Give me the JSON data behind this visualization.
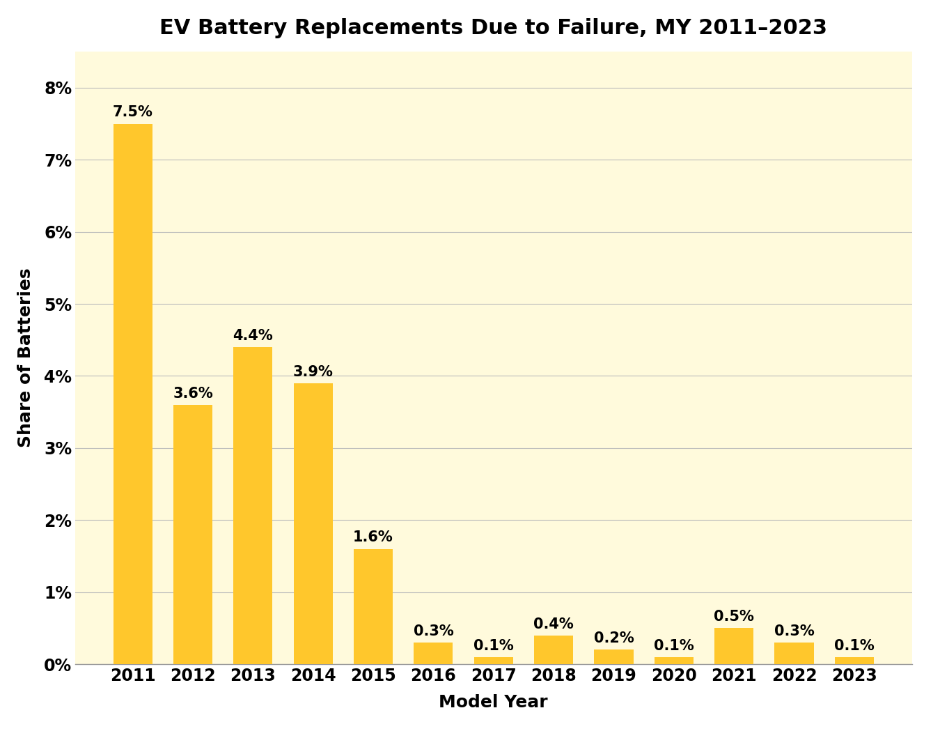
{
  "title": "EV Battery Replacements Due to Failure, MY 2011–2023",
  "xlabel": "Model Year",
  "ylabel": "Share of Batteries",
  "categories": [
    "2011",
    "2012",
    "2013",
    "2014",
    "2015",
    "2016",
    "2017",
    "2018",
    "2019",
    "2020",
    "2021",
    "2022",
    "2023"
  ],
  "values": [
    7.5,
    3.6,
    4.4,
    3.9,
    1.6,
    0.3,
    0.1,
    0.4,
    0.2,
    0.1,
    0.5,
    0.3,
    0.1
  ],
  "labels": [
    "7.5%",
    "3.6%",
    "4.4%",
    "3.9%",
    "1.6%",
    "0.3%",
    "0.1%",
    "0.4%",
    "0.2%",
    "0.1%",
    "0.5%",
    "0.3%",
    "0.1%"
  ],
  "bar_color": "#FFC72C",
  "figure_bg_color": "#FFFFFF",
  "plot_bg_color": "#FFFADC",
  "title_fontsize": 22,
  "axis_label_fontsize": 18,
  "tick_fontsize": 17,
  "bar_label_fontsize": 15,
  "ylim": [
    0,
    8.5
  ],
  "yticks": [
    0,
    1,
    2,
    3,
    4,
    5,
    6,
    7,
    8
  ],
  "grid_color": "#BBBBBB",
  "title_font_weight": "bold",
  "label_font_weight": "bold"
}
